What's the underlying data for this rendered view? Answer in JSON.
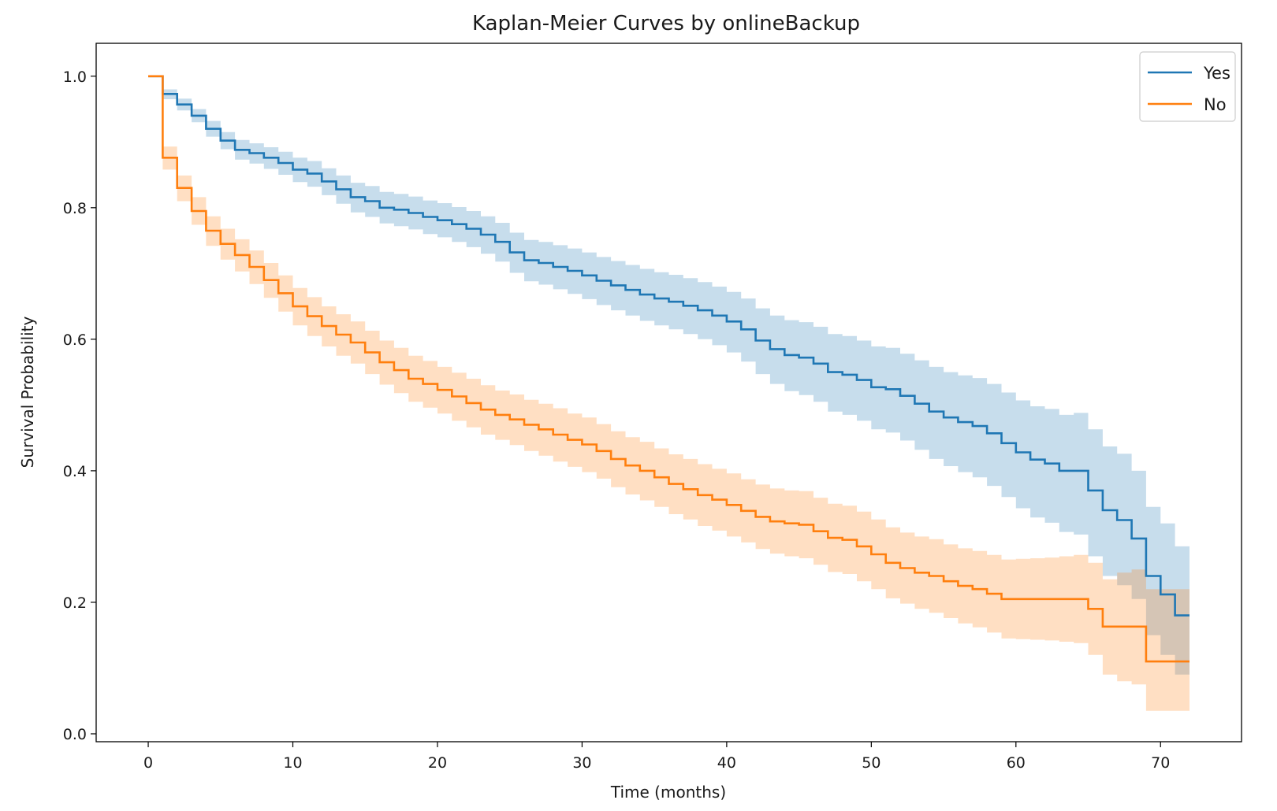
{
  "chart_data": {
    "type": "line",
    "title": "Kaplan-Meier Curves by onlineBackup",
    "xlabel": "Time (months)",
    "ylabel": "Survival Probability",
    "xlim": [
      -3.6,
      75.6
    ],
    "ylim": [
      -0.012,
      1.05
    ],
    "x_ticks": [
      0,
      10,
      20,
      30,
      40,
      50,
      60,
      70
    ],
    "y_ticks": [
      0.0,
      0.2,
      0.4,
      0.6,
      0.8,
      1.0
    ],
    "x_tick_labels": [
      "0",
      "10",
      "20",
      "30",
      "40",
      "50",
      "60",
      "70"
    ],
    "y_tick_labels": [
      "0.0",
      "0.2",
      "0.4",
      "0.6",
      "0.8",
      "1.0"
    ],
    "grid": false,
    "legend_position": "top-right",
    "series": [
      {
        "name": "Yes",
        "color": "#1f77b4",
        "x": [
          0,
          1,
          2,
          3,
          4,
          5,
          6,
          7,
          8,
          9,
          10,
          11,
          12,
          13,
          14,
          15,
          16,
          17,
          18,
          19,
          20,
          21,
          22,
          23,
          24,
          25,
          26,
          27,
          28,
          29,
          30,
          31,
          32,
          33,
          34,
          35,
          36,
          37,
          38,
          39,
          40,
          41,
          42,
          43,
          44,
          45,
          46,
          47,
          48,
          49,
          50,
          51,
          52,
          53,
          54,
          55,
          56,
          57,
          58,
          59,
          60,
          61,
          62,
          63,
          64,
          65,
          66,
          67,
          68,
          69,
          70,
          71,
          72
        ],
        "y": [
          1.0,
          0.973,
          0.957,
          0.94,
          0.92,
          0.902,
          0.888,
          0.883,
          0.876,
          0.868,
          0.858,
          0.852,
          0.84,
          0.828,
          0.816,
          0.81,
          0.8,
          0.797,
          0.792,
          0.786,
          0.781,
          0.775,
          0.768,
          0.759,
          0.748,
          0.732,
          0.72,
          0.716,
          0.71,
          0.704,
          0.697,
          0.689,
          0.682,
          0.675,
          0.668,
          0.662,
          0.657,
          0.651,
          0.644,
          0.636,
          0.627,
          0.615,
          0.598,
          0.585,
          0.576,
          0.572,
          0.563,
          0.55,
          0.546,
          0.538,
          0.527,
          0.524,
          0.514,
          0.502,
          0.49,
          0.481,
          0.474,
          0.468,
          0.457,
          0.442,
          0.428,
          0.417,
          0.411,
          0.4,
          0.4,
          0.37,
          0.34,
          0.325,
          0.297,
          0.24,
          0.212,
          0.18,
          0.18
        ],
        "ci_lower": [
          1.0,
          0.965,
          0.948,
          0.93,
          0.908,
          0.889,
          0.873,
          0.867,
          0.859,
          0.85,
          0.839,
          0.832,
          0.819,
          0.806,
          0.793,
          0.786,
          0.776,
          0.772,
          0.767,
          0.76,
          0.755,
          0.748,
          0.74,
          0.73,
          0.718,
          0.701,
          0.688,
          0.683,
          0.676,
          0.669,
          0.661,
          0.652,
          0.644,
          0.636,
          0.628,
          0.621,
          0.615,
          0.608,
          0.6,
          0.591,
          0.58,
          0.566,
          0.547,
          0.532,
          0.521,
          0.515,
          0.505,
          0.49,
          0.485,
          0.476,
          0.463,
          0.458,
          0.446,
          0.432,
          0.418,
          0.407,
          0.398,
          0.39,
          0.377,
          0.36,
          0.343,
          0.329,
          0.321,
          0.307,
          0.303,
          0.27,
          0.24,
          0.226,
          0.205,
          0.15,
          0.12,
          0.09,
          0.09
        ],
        "ci_upper": [
          1.0,
          0.98,
          0.966,
          0.95,
          0.932,
          0.915,
          0.903,
          0.898,
          0.892,
          0.885,
          0.876,
          0.871,
          0.86,
          0.849,
          0.838,
          0.833,
          0.824,
          0.821,
          0.817,
          0.811,
          0.807,
          0.801,
          0.795,
          0.787,
          0.777,
          0.762,
          0.751,
          0.748,
          0.743,
          0.738,
          0.732,
          0.725,
          0.719,
          0.713,
          0.707,
          0.702,
          0.698,
          0.693,
          0.687,
          0.68,
          0.672,
          0.662,
          0.647,
          0.636,
          0.629,
          0.626,
          0.619,
          0.608,
          0.605,
          0.598,
          0.589,
          0.587,
          0.578,
          0.568,
          0.558,
          0.55,
          0.545,
          0.541,
          0.532,
          0.519,
          0.507,
          0.498,
          0.494,
          0.485,
          0.488,
          0.463,
          0.437,
          0.426,
          0.4,
          0.345,
          0.32,
          0.285,
          0.285
        ]
      },
      {
        "name": "No",
        "color": "#ff7f0e",
        "x": [
          0,
          1,
          2,
          3,
          4,
          5,
          6,
          7,
          8,
          9,
          10,
          11,
          12,
          13,
          14,
          15,
          16,
          17,
          18,
          19,
          20,
          21,
          22,
          23,
          24,
          25,
          26,
          27,
          28,
          29,
          30,
          31,
          32,
          33,
          34,
          35,
          36,
          37,
          38,
          39,
          40,
          41,
          42,
          43,
          44,
          45,
          46,
          47,
          48,
          49,
          50,
          51,
          52,
          53,
          54,
          55,
          56,
          57,
          58,
          59,
          60,
          61,
          62,
          63,
          64,
          65,
          66,
          67,
          68,
          69,
          70,
          71,
          72
        ],
        "y": [
          1.0,
          0.876,
          0.83,
          0.795,
          0.765,
          0.745,
          0.728,
          0.71,
          0.69,
          0.67,
          0.65,
          0.635,
          0.62,
          0.607,
          0.595,
          0.58,
          0.565,
          0.553,
          0.54,
          0.532,
          0.523,
          0.513,
          0.503,
          0.493,
          0.485,
          0.478,
          0.47,
          0.463,
          0.455,
          0.447,
          0.44,
          0.43,
          0.418,
          0.408,
          0.4,
          0.39,
          0.38,
          0.372,
          0.363,
          0.356,
          0.348,
          0.339,
          0.33,
          0.323,
          0.32,
          0.318,
          0.308,
          0.298,
          0.295,
          0.285,
          0.273,
          0.26,
          0.252,
          0.245,
          0.24,
          0.232,
          0.225,
          0.22,
          0.213,
          0.205,
          0.205,
          0.205,
          0.205,
          0.205,
          0.205,
          0.19,
          0.163,
          0.163,
          0.163,
          0.11,
          0.11,
          0.11,
          0.11
        ],
        "ci_lower": [
          1.0,
          0.858,
          0.81,
          0.774,
          0.742,
          0.721,
          0.703,
          0.684,
          0.663,
          0.642,
          0.621,
          0.605,
          0.589,
          0.575,
          0.563,
          0.547,
          0.531,
          0.518,
          0.505,
          0.496,
          0.487,
          0.476,
          0.466,
          0.455,
          0.447,
          0.439,
          0.43,
          0.423,
          0.414,
          0.406,
          0.398,
          0.388,
          0.375,
          0.364,
          0.355,
          0.345,
          0.334,
          0.326,
          0.316,
          0.309,
          0.3,
          0.291,
          0.281,
          0.274,
          0.27,
          0.267,
          0.257,
          0.246,
          0.243,
          0.232,
          0.22,
          0.206,
          0.198,
          0.19,
          0.184,
          0.176,
          0.168,
          0.162,
          0.154,
          0.145,
          0.144,
          0.143,
          0.142,
          0.14,
          0.138,
          0.12,
          0.09,
          0.08,
          0.075,
          0.035,
          0.035,
          0.035,
          0.035
        ],
        "ci_upper": [
          1.0,
          0.893,
          0.849,
          0.816,
          0.787,
          0.768,
          0.752,
          0.735,
          0.716,
          0.697,
          0.678,
          0.664,
          0.65,
          0.638,
          0.627,
          0.613,
          0.598,
          0.587,
          0.575,
          0.567,
          0.558,
          0.549,
          0.54,
          0.53,
          0.522,
          0.516,
          0.508,
          0.502,
          0.495,
          0.487,
          0.481,
          0.471,
          0.46,
          0.451,
          0.444,
          0.434,
          0.425,
          0.418,
          0.41,
          0.403,
          0.396,
          0.387,
          0.379,
          0.373,
          0.37,
          0.369,
          0.359,
          0.35,
          0.347,
          0.338,
          0.326,
          0.314,
          0.306,
          0.3,
          0.296,
          0.288,
          0.282,
          0.278,
          0.272,
          0.265,
          0.266,
          0.267,
          0.268,
          0.27,
          0.272,
          0.26,
          0.235,
          0.245,
          0.25,
          0.22,
          0.22,
          0.22,
          0.22
        ]
      }
    ]
  }
}
